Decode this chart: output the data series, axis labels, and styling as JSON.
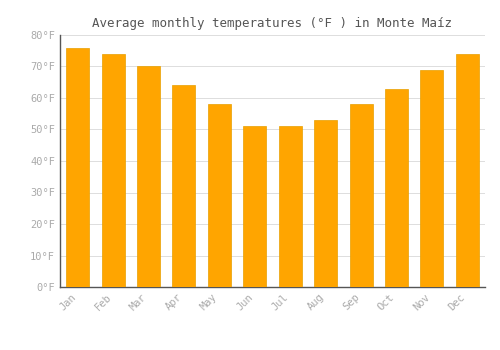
{
  "months": [
    "Jan",
    "Feb",
    "Mar",
    "Apr",
    "May",
    "Jun",
    "Jul",
    "Aug",
    "Sep",
    "Oct",
    "Nov",
    "Dec"
  ],
  "values": [
    76,
    74,
    70,
    64,
    58,
    51,
    51,
    53,
    58,
    63,
    69,
    74
  ],
  "bar_color": "#FFA500",
  "bar_edge_color": "#E8A000",
  "title": "Average monthly temperatures (°F ) in Monte Maíz",
  "ylim": [
    0,
    80
  ],
  "yticks": [
    0,
    10,
    20,
    30,
    40,
    50,
    60,
    70,
    80
  ],
  "ytick_labels": [
    "0°F",
    "10°F",
    "20°F",
    "30°F",
    "40°F",
    "50°F",
    "60°F",
    "70°F",
    "80°F"
  ],
  "bg_color": "#ffffff",
  "title_fontsize": 9,
  "tick_fontsize": 7.5,
  "grid_color": "#dddddd",
  "bar_width": 0.65
}
